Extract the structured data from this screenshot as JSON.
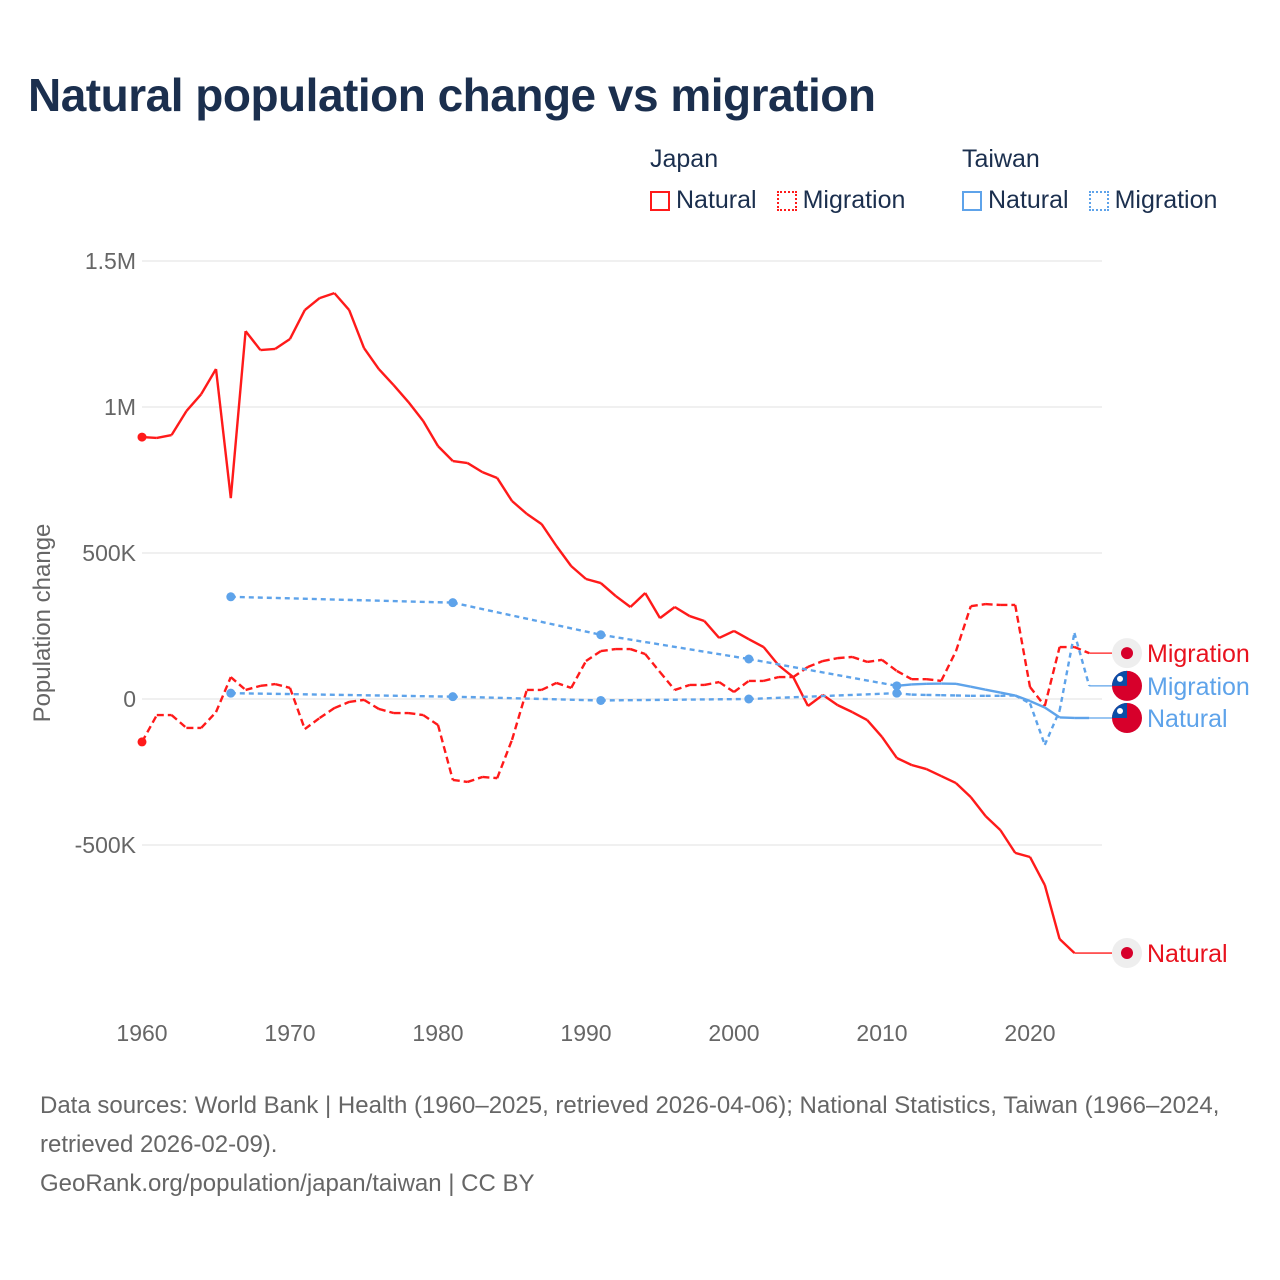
{
  "title": "Natural population change vs migration",
  "legend": {
    "groups": [
      {
        "name": "Japan",
        "items": [
          {
            "label": "Natural",
            "style": "solid"
          },
          {
            "label": "Migration",
            "style": "dotted"
          }
        ],
        "color": "#ff1a1a"
      },
      {
        "name": "Taiwan",
        "items": [
          {
            "label": "Natural",
            "style": "solid"
          },
          {
            "label": "Migration",
            "style": "dotted"
          }
        ],
        "color": "#5ea3ea"
      }
    ]
  },
  "footer": {
    "source": "Data sources: World Bank | Health (1960–2025, retrieved 2026-04-06); National Statistics, Taiwan (1966–2024, retrieved 2026-02-09).",
    "credit": "GeoRank.org/population/japan/taiwan | CC BY"
  },
  "chart_data": {
    "type": "line",
    "title": "Natural population change vs migration",
    "xlabel": "",
    "ylabel": "Population change",
    "xlim": [
      1960,
      2025
    ],
    "ylim": [
      -1000000,
      1500000
    ],
    "x_ticks": [
      1960,
      1970,
      1980,
      1990,
      2000,
      2010,
      2020
    ],
    "x_tick_labels": [
      "1960",
      "1970",
      "1980",
      "1990",
      "2000",
      "2010",
      "2020"
    ],
    "y_ticks": [
      -500000,
      0,
      500000,
      1000000,
      1500000
    ],
    "y_tick_labels": [
      "-500K",
      "0",
      "500K",
      "1M",
      "1.5M"
    ],
    "grid": true,
    "legend_position": "top-right",
    "series": [
      {
        "name": "Japan Natural",
        "end_label": "Natural",
        "country": "Japan",
        "color": "#ff1a1a",
        "dash": "solid",
        "x": [
          1960,
          1961,
          1962,
          1963,
          1964,
          1965,
          1966,
          1967,
          1968,
          1969,
          1970,
          1971,
          1972,
          1973,
          1974,
          1975,
          1976,
          1977,
          1978,
          1979,
          1980,
          1981,
          1982,
          1983,
          1984,
          1985,
          1986,
          1987,
          1988,
          1989,
          1990,
          1991,
          1992,
          1993,
          1994,
          1995,
          1996,
          1997,
          1998,
          1999,
          2000,
          2001,
          2002,
          2003,
          2004,
          2005,
          2006,
          2007,
          2008,
          2009,
          2010,
          2011,
          2012,
          2013,
          2014,
          2015,
          2016,
          2017,
          2018,
          2019,
          2020,
          2021,
          2022,
          2023
        ],
        "y": [
          897000,
          894000,
          904000,
          986000,
          1044000,
          1130000,
          688000,
          1260000,
          1195000,
          1199000,
          1233000,
          1332000,
          1373000,
          1390000,
          1332000,
          1202000,
          1130000,
          1075000,
          1017000,
          952000,
          866000,
          815000,
          808000,
          777000,
          757000,
          678000,
          634000,
          599000,
          524000,
          455000,
          411000,
          397000,
          353000,
          315000,
          363000,
          277000,
          315000,
          284000,
          267000,
          209000,
          233000,
          205000,
          178000,
          116000,
          75000,
          -24000,
          14000,
          -21000,
          -45000,
          -72000,
          -130000,
          -202000,
          -226000,
          -240000,
          -264000,
          -288000,
          -336000,
          -401000,
          -449000,
          -527000,
          -541000,
          -637000,
          -822000,
          -870000
        ]
      },
      {
        "name": "Japan Migration",
        "end_label": "Migration",
        "country": "Japan",
        "color": "#ff1a1a",
        "dash": "dashed",
        "x": [
          1960,
          1961,
          1962,
          1963,
          1964,
          1965,
          1966,
          1967,
          1968,
          1969,
          1970,
          1971,
          1972,
          1973,
          1974,
          1975,
          1976,
          1977,
          1978,
          1979,
          1980,
          1981,
          1982,
          1983,
          1984,
          1985,
          1986,
          1987,
          1988,
          1989,
          1990,
          1991,
          1992,
          1993,
          1994,
          1995,
          1996,
          1997,
          1998,
          1999,
          2000,
          2001,
          2002,
          2003,
          2004,
          2005,
          2006,
          2007,
          2008,
          2009,
          2010,
          2011,
          2012,
          2013,
          2014,
          2015,
          2016,
          2017,
          2018,
          2019,
          2020,
          2021,
          2022,
          2023,
          2024
        ],
        "y": [
          -147000,
          -55000,
          -55000,
          -99000,
          -99000,
          -45000,
          75000,
          31000,
          45000,
          51000,
          38000,
          -103000,
          -65000,
          -31000,
          -10000,
          -3000,
          -34000,
          -48000,
          -48000,
          -55000,
          -89000,
          -277000,
          -284000,
          -267000,
          -271000,
          -140000,
          31000,
          31000,
          55000,
          38000,
          130000,
          164000,
          171000,
          171000,
          154000,
          92000,
          31000,
          48000,
          48000,
          58000,
          24000,
          62000,
          62000,
          75000,
          75000,
          110000,
          130000,
          140000,
          144000,
          127000,
          134000,
          96000,
          68000,
          68000,
          62000,
          164000,
          318000,
          325000,
          322000,
          322000,
          41000,
          -24000,
          178000,
          178000,
          157000
        ]
      },
      {
        "name": "Taiwan Natural",
        "end_label": "Natural",
        "country": "Taiwan",
        "color": "#5ea3ea",
        "dash": "solid",
        "x": [
          1966,
          1981,
          1991,
          2001,
          2011,
          2012,
          2013,
          2014,
          2015,
          2016,
          2017,
          2018,
          2019,
          2020,
          2021,
          2022,
          2023,
          2024
        ],
        "y": [
          350000,
          330000,
          220000,
          137000,
          45000,
          50000,
          52000,
          53000,
          52000,
          42000,
          32000,
          22000,
          12000,
          -7000,
          -29000,
          -63000,
          -65000,
          -65000
        ]
      },
      {
        "name": "Taiwan Migration",
        "end_label": "Migration",
        "country": "Taiwan",
        "color": "#5ea3ea",
        "dash": "dotted",
        "x": [
          1966,
          1981,
          1991,
          2001,
          2011,
          2012,
          2013,
          2014,
          2015,
          2016,
          2017,
          2018,
          2019,
          2020,
          2021,
          2022,
          2023,
          2024
        ],
        "y": [
          20000,
          8000,
          -5000,
          0,
          20000,
          15000,
          14000,
          13000,
          12000,
          11000,
          11000,
          11000,
          12000,
          -15000,
          -157000,
          -40000,
          226000,
          45000
        ]
      }
    ]
  }
}
